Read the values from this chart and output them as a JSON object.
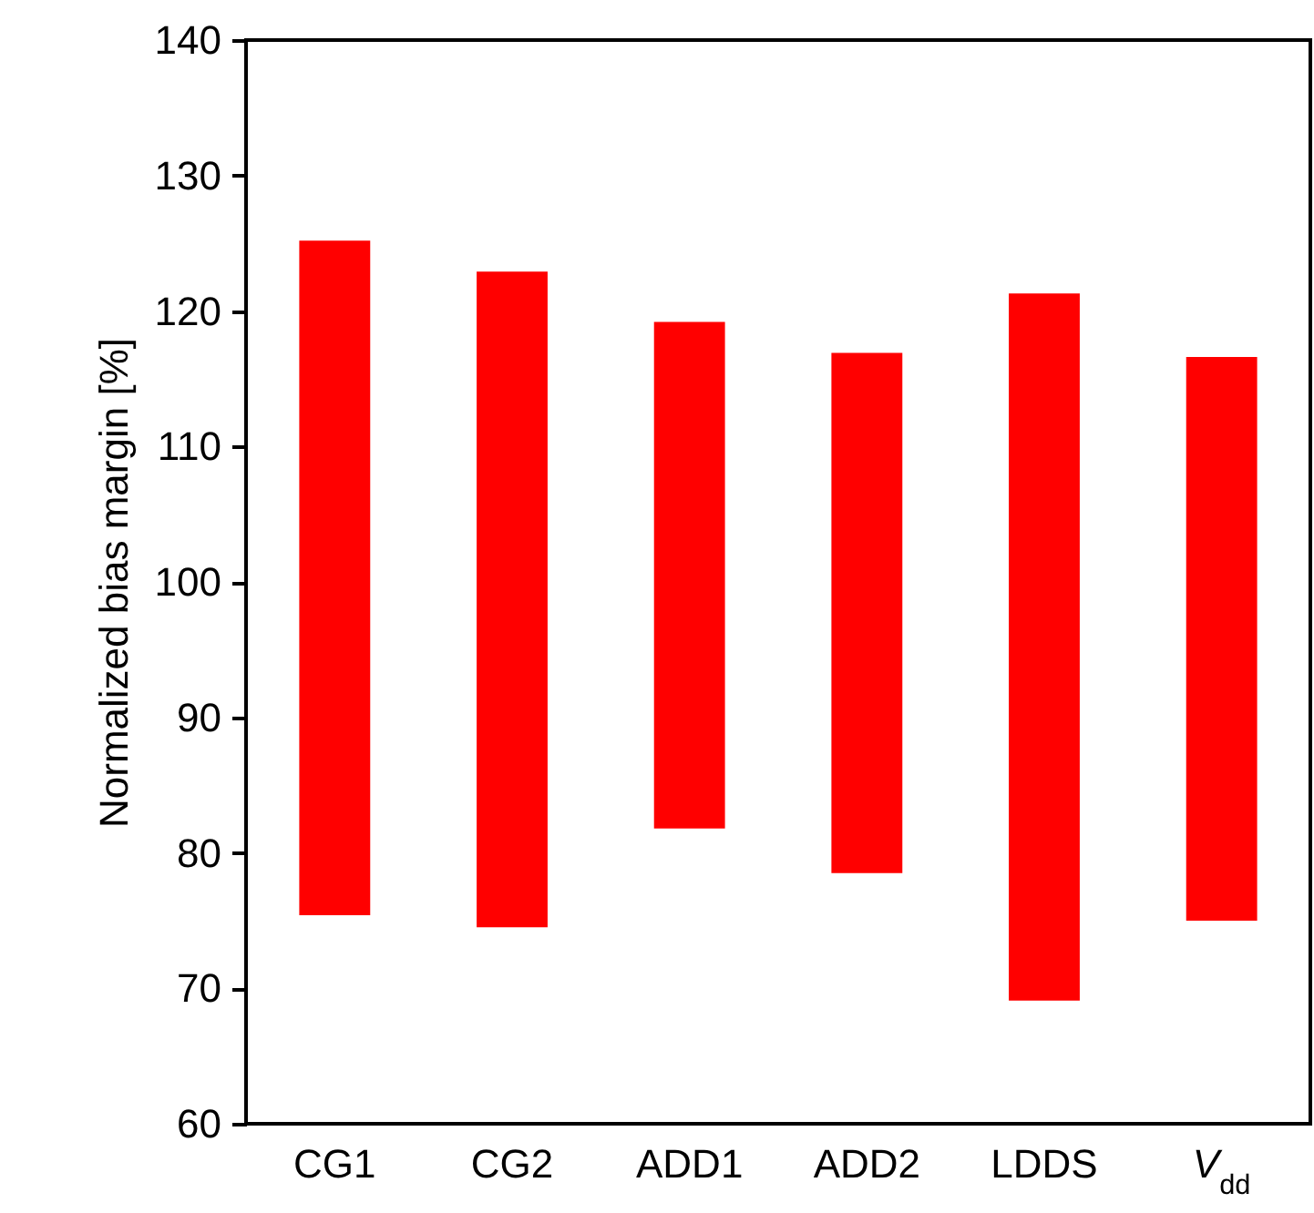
{
  "chart_data": {
    "type": "bar",
    "ylabel": "Normalized bias margin [%]",
    "categories": [
      "CG1",
      "CG2",
      "ADD1",
      "ADD2",
      "LDDS",
      "V$_{dd}$"
    ],
    "base": [
      75.4,
      74.5,
      81.8,
      78.5,
      69.1,
      75.0
    ],
    "values": [
      49.8,
      48.4,
      37.4,
      38.4,
      52.2,
      41.6
    ],
    "color": "#ff0000",
    "ylim": [
      60,
      140
    ],
    "yticks": [
      60,
      70,
      80,
      90,
      100,
      110,
      120,
      130,
      140
    ],
    "grid": false
  }
}
